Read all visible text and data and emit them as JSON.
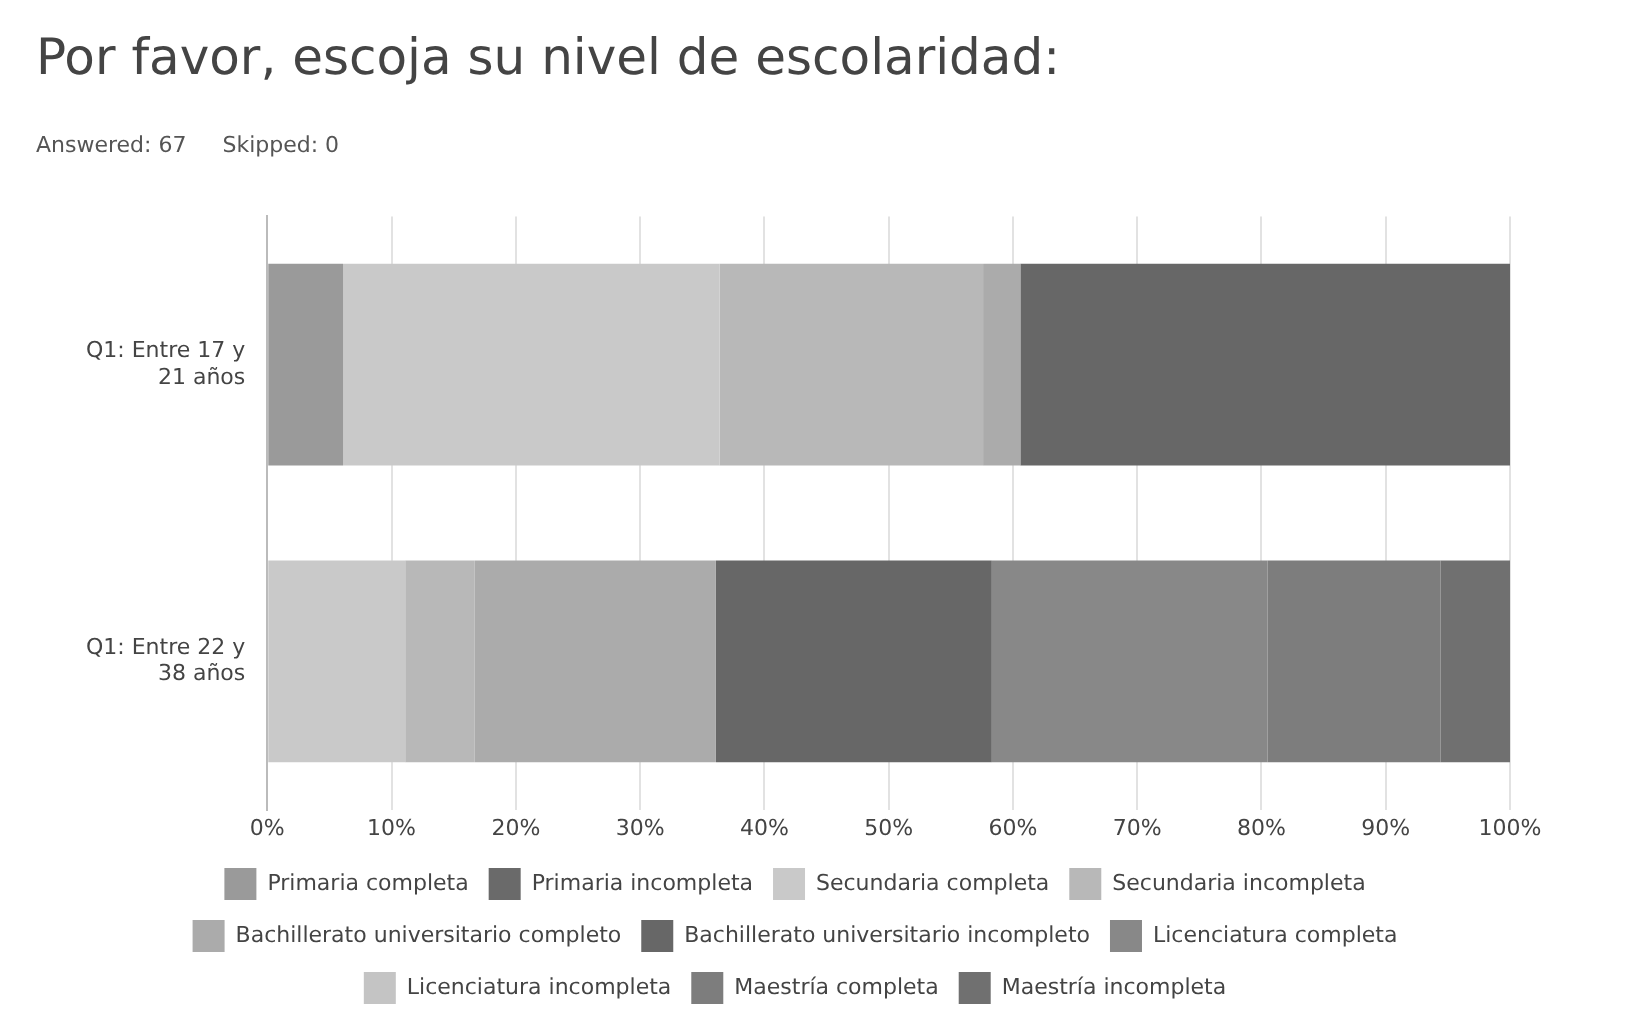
{
  "chart_data": {
    "type": "bar",
    "orientation": "horizontal",
    "stacked": true,
    "title": "Por favor, escoja su nivel de escolaridad:",
    "annotations": [
      "Answered: 67",
      "Skipped: 0"
    ],
    "categories": [
      "Q1: Entre 17 y 21 años",
      "Q1: Entre 22 y 38 años"
    ],
    "series": [
      {
        "name": "Primaria completa",
        "color": "#9a9a9a",
        "values": [
          6.1,
          0
        ]
      },
      {
        "name": "Primaria incompleta",
        "color": "#6a6a6a",
        "values": [
          0,
          0
        ]
      },
      {
        "name": "Secundaria completa",
        "color": "#c9c9c9",
        "values": [
          30.3,
          11.1
        ]
      },
      {
        "name": "Secundaria incompleta",
        "color": "#b8b8b8",
        "values": [
          21.2,
          5.6
        ]
      },
      {
        "name": "Bachillerato universitario completo",
        "color": "#ababab",
        "values": [
          3.0,
          19.4
        ]
      },
      {
        "name": "Bachillerato universitario incompleto",
        "color": "#676767",
        "values": [
          39.4,
          22.2
        ]
      },
      {
        "name": "Licenciatura completa",
        "color": "#888888",
        "values": [
          0,
          22.2
        ]
      },
      {
        "name": "Licenciatura incompleta",
        "color": "#c4c4c4",
        "values": [
          0,
          0
        ]
      },
      {
        "name": "Maestría completa",
        "color": "#7d7d7d",
        "values": [
          0,
          13.9
        ]
      },
      {
        "name": "Maestría incompleta",
        "color": "#707070",
        "values": [
          0,
          5.6
        ]
      }
    ],
    "xlim": [
      0,
      100
    ],
    "xticks": [
      {
        "value": 0,
        "label": "0%"
      },
      {
        "value": 10,
        "label": "10%"
      },
      {
        "value": 20,
        "label": "20%"
      },
      {
        "value": 30,
        "label": "30%"
      },
      {
        "value": 40,
        "label": "40%"
      },
      {
        "value": 50,
        "label": "50%"
      },
      {
        "value": 60,
        "label": "60%"
      },
      {
        "value": 70,
        "label": "70%"
      },
      {
        "value": 80,
        "label": "80%"
      },
      {
        "value": 90,
        "label": "90%"
      },
      {
        "value": 100,
        "label": "100%"
      }
    ],
    "grid": "x",
    "legend": "bottom"
  }
}
